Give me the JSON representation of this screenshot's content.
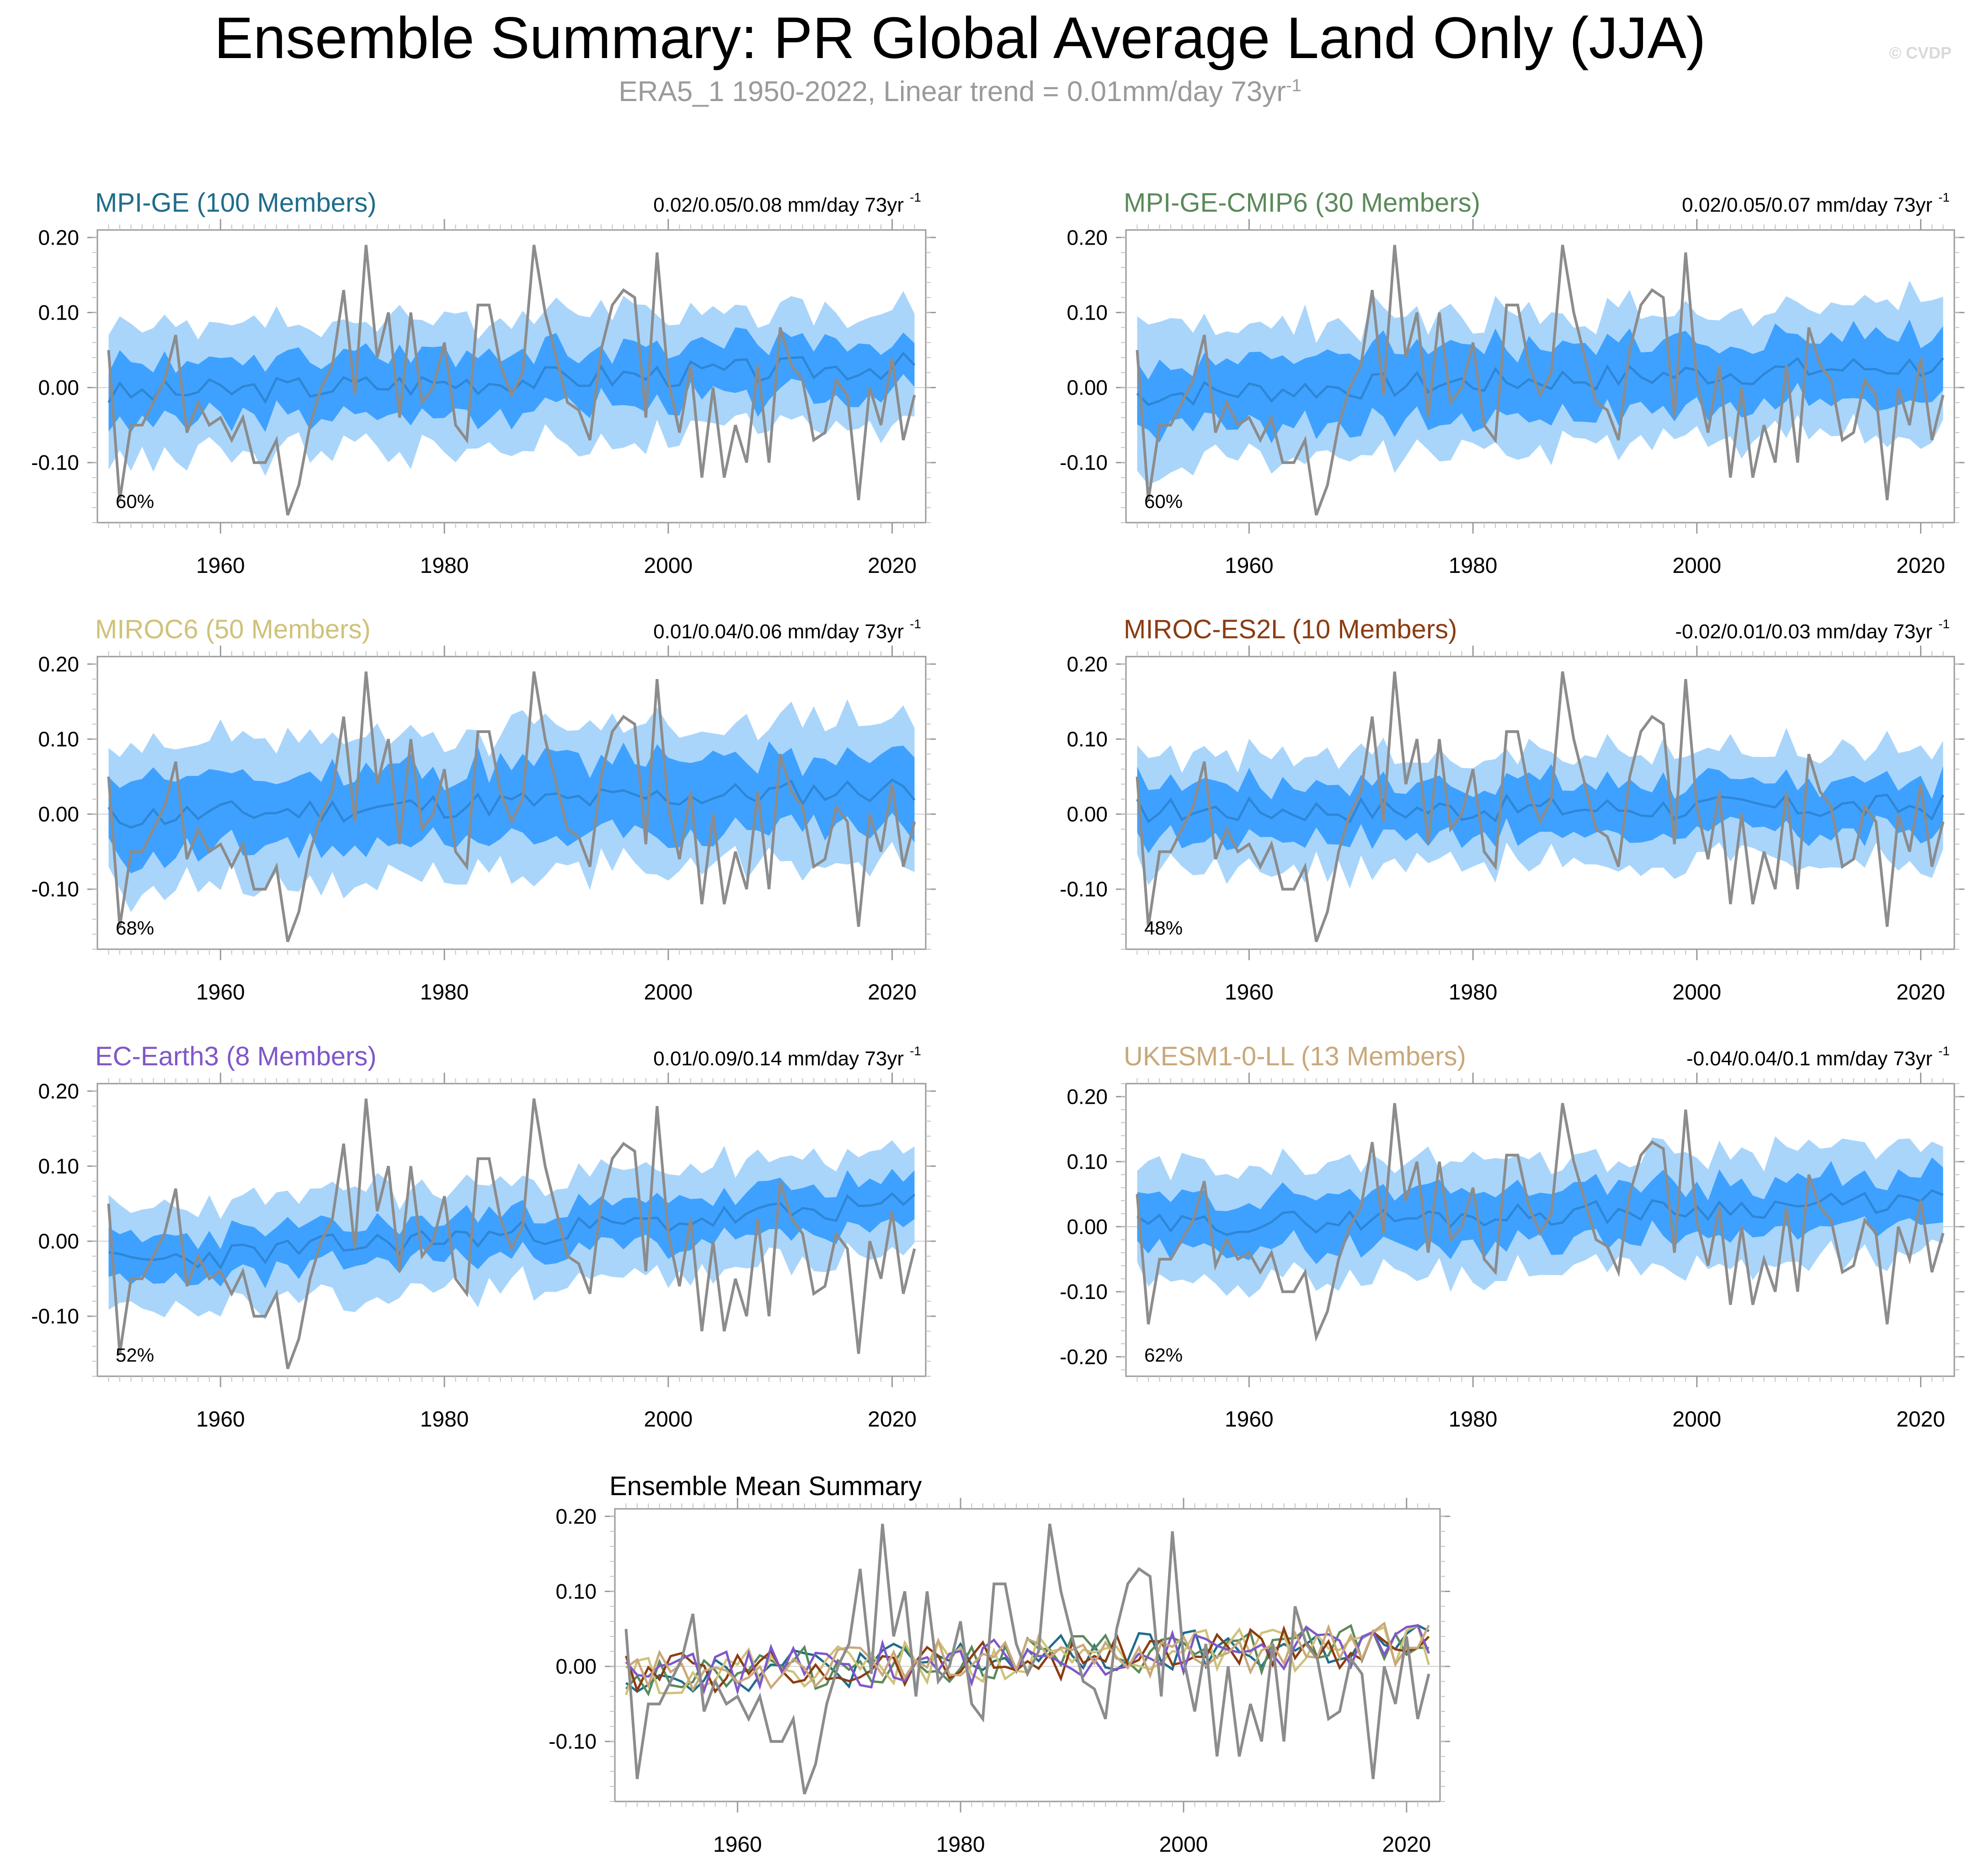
{
  "title": "Ensemble Summary: PR Global Average Land Only (JJA)",
  "subtitle": {
    "text": "ERA5_1 1950-2022, Linear trend = 0.01mm/day 73yr",
    "sup": "-1"
  },
  "copyright": "© CVDP",
  "colors": {
    "outer_band": "#a9d5fb",
    "inner_band": "#3ea1ff",
    "ensemble_mean": "#2f86d6",
    "observations": "#8c8c8c",
    "axis": "#9a9a9a"
  },
  "chart_data": [
    {
      "type": "area",
      "title": "MPI-GE (100 Members)",
      "title_color": "#1f6d8a",
      "trend_text": "0.02/0.05/0.08 mm/day 73yr",
      "trend_sup": "-1",
      "percent_label": "60%",
      "xlim": [
        1949,
        2023
      ],
      "ylim": [
        -0.18,
        0.21
      ],
      "xticks": [
        1960,
        1980,
        2000,
        2020
      ],
      "yticks": [
        -0.1,
        0.0,
        0.1,
        0.2
      ],
      "ytick_labels": [
        "-0.10",
        "0.00",
        "0.10",
        "0.20"
      ],
      "trend_start": -0.01,
      "trend_end": 0.03,
      "outer_half_width": 0.085,
      "inner_half_width": 0.038,
      "seed": 3
    },
    {
      "type": "area",
      "title": "MPI-GE-CMIP6 (30 Members)",
      "title_color": "#5a8a5a",
      "trend_text": "0.02/0.05/0.07 mm/day 73yr",
      "trend_sup": "-1",
      "percent_label": "60%",
      "xlim": [
        1949,
        2023
      ],
      "ylim": [
        -0.18,
        0.21
      ],
      "xticks": [
        1960,
        1980,
        2000,
        2020
      ],
      "yticks": [
        -0.1,
        0.0,
        0.1,
        0.2
      ],
      "ytick_labels": [
        "-0.10",
        "0.00",
        "0.10",
        "0.20"
      ],
      "trend_start": -0.01,
      "trend_end": 0.03,
      "outer_half_width": 0.09,
      "inner_half_width": 0.045,
      "seed": 7
    },
    {
      "type": "area",
      "title": "MIROC6 (50 Members)",
      "title_color": "#cfc27a",
      "trend_text": "0.01/0.04/0.06 mm/day 73yr",
      "trend_sup": "-1",
      "percent_label": "68%",
      "xlim": [
        1949,
        2023
      ],
      "ylim": [
        -0.18,
        0.21
      ],
      "xticks": [
        1960,
        1980,
        2000,
        2020
      ],
      "yticks": [
        -0.1,
        0.0,
        0.1,
        0.2
      ],
      "ytick_labels": [
        "-0.10",
        "0.00",
        "0.10",
        "0.20"
      ],
      "trend_start": -0.005,
      "trend_end": 0.035,
      "outer_half_width": 0.095,
      "inner_half_width": 0.05,
      "seed": 11
    },
    {
      "type": "area",
      "title": "MIROC-ES2L (10 Members)",
      "title_color": "#8b3c12",
      "trend_text": "-0.02/0.01/0.03 mm/day 73yr",
      "trend_sup": "-1",
      "percent_label": "48%",
      "xlim": [
        1949,
        2023
      ],
      "ylim": [
        -0.18,
        0.21
      ],
      "xticks": [
        1960,
        1980,
        2000,
        2020
      ],
      "yticks": [
        -0.1,
        0.0,
        0.1,
        0.2
      ],
      "ytick_labels": [
        "-0.10",
        "0.00",
        "0.10",
        "0.20"
      ],
      "trend_start": 0.005,
      "trend_end": 0.01,
      "outer_half_width": 0.075,
      "inner_half_width": 0.035,
      "seed": 17
    },
    {
      "type": "area",
      "title": "EC-Earth3 (8 Members)",
      "title_color": "#7f57c9",
      "trend_text": "0.01/0.09/0.14 mm/day 73yr",
      "trend_sup": "-1",
      "percent_label": "52%",
      "xlim": [
        1949,
        2023
      ],
      "ylim": [
        -0.18,
        0.21
      ],
      "xticks": [
        1960,
        1980,
        2000,
        2020
      ],
      "yticks": [
        -0.1,
        0.0,
        0.1,
        0.2
      ],
      "ytick_labels": [
        "-0.10",
        "0.00",
        "0.10",
        "0.20"
      ],
      "trend_start": -0.03,
      "trend_end": 0.05,
      "outer_half_width": 0.07,
      "inner_half_width": 0.03,
      "seed": 23
    },
    {
      "type": "area",
      "title": "UKESM1-0-LL (13 Members)",
      "title_color": "#c9a87a",
      "trend_text": "-0.04/0.04/0.1 mm/day 73yr",
      "trend_sup": "-1",
      "percent_label": "62%",
      "xlim": [
        1949,
        2023
      ],
      "ylim": [
        -0.23,
        0.22
      ],
      "xticks": [
        1960,
        1980,
        2000,
        2020
      ],
      "yticks": [
        -0.2,
        -0.1,
        0.0,
        0.1,
        0.2
      ],
      "ytick_labels": [
        "-0.20",
        "-0.10",
        "0.00",
        "0.10",
        "0.20"
      ],
      "trend_start": 0.0,
      "trend_end": 0.04,
      "outer_half_width": 0.085,
      "inner_half_width": 0.04,
      "seed": 29
    },
    {
      "type": "line",
      "title": "Ensemble Mean Summary",
      "title_color": "#000000",
      "xlim": [
        1949,
        2023
      ],
      "ylim": [
        -0.18,
        0.21
      ],
      "xticks": [
        1960,
        1980,
        2000,
        2020
      ],
      "yticks": [
        -0.1,
        0.0,
        0.1,
        0.2
      ],
      "ytick_labels": [
        "-0.10",
        "0.00",
        "0.10",
        "0.20"
      ],
      "series_colors": [
        "#1f6d8a",
        "#5a8a5a",
        "#cfc27a",
        "#8b3c12",
        "#7f57c9",
        "#c9a87a"
      ]
    }
  ],
  "observations": {
    "name": "ERA5_1",
    "x_start": 1950,
    "values": [
      0.05,
      -0.15,
      -0.05,
      -0.05,
      -0.02,
      0.01,
      0.07,
      -0.06,
      -0.02,
      -0.05,
      -0.04,
      -0.07,
      -0.04,
      -0.1,
      -0.1,
      -0.07,
      -0.17,
      -0.13,
      -0.05,
      0.0,
      0.03,
      0.13,
      -0.01,
      0.19,
      0.04,
      0.1,
      -0.04,
      0.1,
      -0.02,
      0.0,
      0.06,
      -0.05,
      -0.07,
      0.11,
      0.11,
      0.03,
      -0.01,
      0.02,
      0.19,
      0.1,
      0.04,
      -0.02,
      -0.03,
      -0.07,
      0.05,
      0.11,
      0.13,
      0.12,
      -0.04,
      0.18,
      0.01,
      -0.06,
      0.03,
      -0.12,
      0.0,
      -0.12,
      -0.05,
      -0.1,
      0.03,
      -0.1,
      0.08,
      0.03,
      0.01,
      -0.07,
      -0.06,
      0.01,
      -0.01,
      -0.15,
      0.0,
      -0.05,
      0.04,
      -0.07,
      -0.01
    ]
  }
}
